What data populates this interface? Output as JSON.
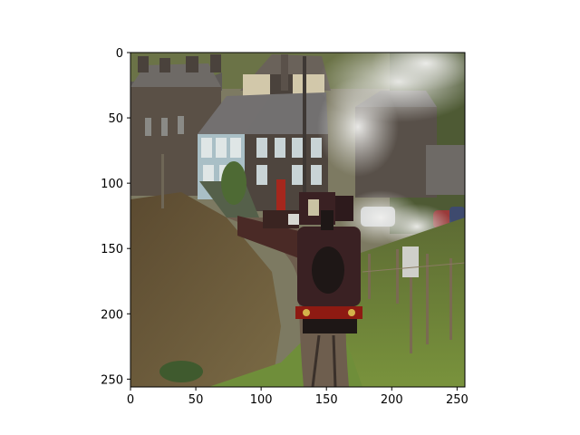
{
  "chart_data": {
    "type": "image",
    "title": "",
    "xlabel": "",
    "ylabel": "",
    "xlim": [
      0,
      256
    ],
    "ylim": [
      256,
      0
    ],
    "x_ticks": [
      0,
      50,
      100,
      150,
      200,
      250
    ],
    "y_ticks": [
      0,
      50,
      100,
      150,
      200,
      250
    ],
    "x_tick_labels": [
      "0",
      "50",
      "100",
      "150",
      "200",
      "250"
    ],
    "y_tick_labels": [
      "0",
      "50",
      "100",
      "150",
      "200",
      "250"
    ],
    "grid": false,
    "image_subject": "steam-locomotive-passing-stone-cottages"
  },
  "colors": {
    "sky": "#b8b8b0",
    "hill": "#6b7347",
    "roof": "#6e6a66",
    "stone_wall": "#5a5046",
    "window": "#c9d4d6",
    "steam": "#e4e4e2",
    "locomotive_body": "#3a2123",
    "locomotive_dark": "#1e1716",
    "buffer_beam": "#8e1a12",
    "grass": "#6f8e3a",
    "dry_bushes": "#6a5a3a",
    "track": "#6a5648",
    "fence_post": "#7a6a52",
    "axes_frame": "#000000"
  }
}
